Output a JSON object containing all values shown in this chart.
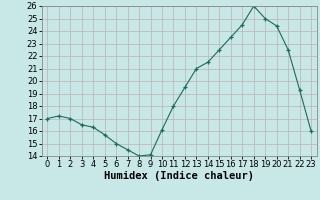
{
  "x": [
    0,
    1,
    2,
    3,
    4,
    5,
    6,
    7,
    8,
    9,
    10,
    11,
    12,
    13,
    14,
    15,
    16,
    17,
    18,
    19,
    20,
    21,
    22,
    23
  ],
  "y": [
    17.0,
    17.2,
    17.0,
    16.5,
    16.3,
    15.7,
    15.0,
    14.5,
    14.0,
    14.1,
    16.1,
    18.0,
    19.5,
    21.0,
    21.5,
    22.5,
    23.5,
    24.5,
    26.0,
    25.0,
    24.4,
    22.5,
    19.3,
    16.0
  ],
  "xlabel": "Humidex (Indice chaleur)",
  "ylim": [
    14,
    26
  ],
  "xlim": [
    -0.5,
    23.5
  ],
  "yticks": [
    14,
    15,
    16,
    17,
    18,
    19,
    20,
    21,
    22,
    23,
    24,
    25,
    26
  ],
  "xticks": [
    0,
    1,
    2,
    3,
    4,
    5,
    6,
    7,
    8,
    9,
    10,
    11,
    12,
    13,
    14,
    15,
    16,
    17,
    18,
    19,
    20,
    21,
    22,
    23
  ],
  "line_color": "#1a6b5a",
  "marker": "+",
  "bg_color": "#c8e8e8",
  "grid_color": "#c0b0b0",
  "label_fontsize": 7.5,
  "tick_fontsize": 6.0
}
